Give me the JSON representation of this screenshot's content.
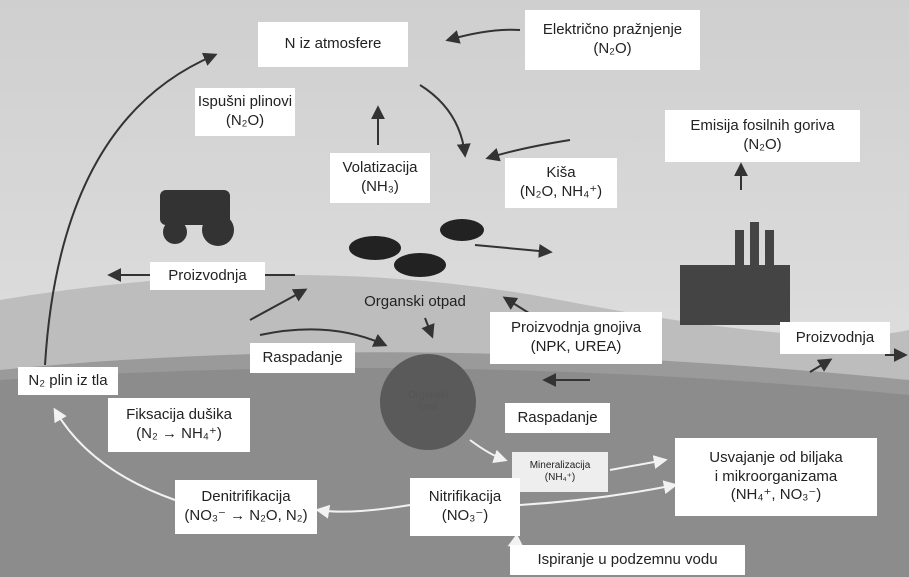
{
  "nodes": [
    {
      "lines": [
        "N iz atmosfere"
      ]
    },
    {
      "lines": [
        "Električno pražnjenje",
        "(N₂O)"
      ]
    },
    {
      "lines": [
        "Ispušni plinovi",
        "(N₂O)"
      ]
    },
    {
      "lines": [
        "Volatizacija",
        "(NH₃)"
      ]
    },
    {
      "lines": [
        "Kiša",
        "(N₂O, NH₄⁺)"
      ]
    },
    {
      "lines": [
        "Emisija fosilnih goriva",
        "(N₂O)"
      ]
    },
    {
      "lines": [
        "Proizvodnja"
      ]
    },
    {
      "lines": [
        "Organski otpad"
      ]
    },
    {
      "lines": [
        "Proizvodnja gnojiva",
        "(NPK, UREA)"
      ]
    },
    {
      "lines": [
        "Proizvodnja"
      ]
    },
    {
      "lines": [
        "Raspadanje"
      ]
    },
    {
      "lines": [
        "N₂ plin iz tla"
      ]
    },
    {
      "lines": [
        "Fiksacija dušika",
        "(N₂ → NH₄⁺)"
      ]
    },
    {
      "lines": [
        "Organski",
        "fond"
      ]
    },
    {
      "lines": [
        "Raspadanje"
      ]
    },
    {
      "lines": [
        "Mineralizacija",
        "(NH₄⁺)"
      ]
    },
    {
      "lines": [
        "Usvajanje od biljaka",
        "i mikroorganizama",
        "(NH₄⁺, NO₃⁻)"
      ]
    },
    {
      "lines": [
        "Denitrifikacija",
        "(NO₃⁻ → N₂O, N₂)"
      ]
    },
    {
      "lines": [
        "Nitrifikacija",
        "(NO₃⁻)"
      ]
    },
    {
      "lines": [
        "Ispiranje u podzemnu vodu"
      ]
    }
  ]
}
